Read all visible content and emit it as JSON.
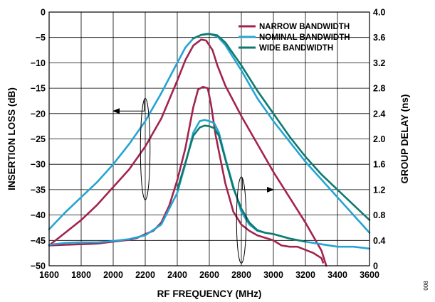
{
  "figure_code": "008",
  "chart_data": {
    "type": "line",
    "xlabel": "RF FREQUENCY (MHz)",
    "ylabel_left": "INSERTION LOSS (dB)",
    "ylabel_right": "GROUP DELAY (ns)",
    "xlim": [
      1600,
      3600
    ],
    "ylim_left": [
      -50,
      0
    ],
    "ylim_right": [
      0,
      4.0
    ],
    "x_ticks": [
      1600,
      1800,
      2000,
      2200,
      2400,
      2600,
      2800,
      3000,
      3200,
      3400,
      3600
    ],
    "y_left_ticks": [
      0,
      -5,
      -10,
      -15,
      -20,
      -25,
      -30,
      -35,
      -40,
      -45,
      -50
    ],
    "y_left_tick_labels": [
      "0",
      "−5",
      "−10",
      "−15",
      "−20",
      "−25",
      "−30",
      "−35",
      "−40",
      "−45",
      "−50"
    ],
    "y_right_ticks": [
      4.0,
      3.6,
      3.2,
      2.8,
      2.4,
      2.0,
      1.6,
      1.2,
      0.8,
      0.4,
      0
    ],
    "y_right_tick_labels": [
      "4.0",
      "3.6",
      "3.2",
      "2.8",
      "2.4",
      "2.0",
      "1.6",
      "1.2",
      "0.8",
      "0.4",
      "0"
    ],
    "grid": true,
    "legend_position": "top-right",
    "colors": {
      "narrow": "#a3234f",
      "nominal": "#25a4d4",
      "wide": "#0e7a6e"
    },
    "series": [
      {
        "name": "NARROW BANDWIDTH",
        "key": "narrow",
        "axis": "left",
        "x": [
          1600,
          1700,
          1800,
          1900,
          2000,
          2100,
          2200,
          2300,
          2400,
          2450,
          2500,
          2550,
          2580,
          2620,
          2650,
          2700,
          2800,
          2900,
          3000,
          3100,
          3200,
          3300,
          3330
        ],
        "y": [
          -46,
          -43.5,
          -41,
          -38,
          -34.5,
          -31,
          -26.5,
          -21,
          -13.5,
          -9.5,
          -6.6,
          -5.4,
          -5.6,
          -7.5,
          -10.5,
          -14.5,
          -20.5,
          -26,
          -31.5,
          -36.5,
          -41.5,
          -47,
          -50
        ]
      },
      {
        "name": "NOMINAL BANDWIDTH",
        "key": "nominal",
        "axis": "left",
        "x": [
          1600,
          1700,
          1800,
          1900,
          2000,
          2100,
          2200,
          2300,
          2400,
          2450,
          2500,
          2550,
          2580,
          2600,
          2650,
          2700,
          2800,
          2900,
          3000,
          3100,
          3200,
          3300,
          3400,
          3500,
          3600
        ],
        "y": [
          -42.8,
          -39.5,
          -36.5,
          -33.5,
          -30,
          -26,
          -21.5,
          -16,
          -10,
          -7,
          -5.2,
          -4.5,
          -4.3,
          -4.3,
          -4.8,
          -6.5,
          -11.5,
          -17,
          -21.5,
          -25.5,
          -29.5,
          -33,
          -36.5,
          -40,
          -43.5
        ]
      },
      {
        "name": "WIDE BANDWIDTH",
        "key": "wide",
        "axis": "left",
        "x": [
          2500,
          2550,
          2600,
          2650,
          2700,
          2800,
          2900,
          3000,
          3100,
          3200,
          3300,
          3400,
          3500,
          3600
        ],
        "y": [
          -5.2,
          -4.5,
          -4.3,
          -4.6,
          -6,
          -10.5,
          -15.5,
          -20,
          -24.5,
          -28.5,
          -32,
          -35,
          -38,
          -41
        ]
      },
      {
        "name": "NARROW BANDWIDTH",
        "key": "narrow",
        "axis": "right",
        "x": [
          1600,
          1700,
          1800,
          1900,
          2000,
          2100,
          2150,
          2200,
          2250,
          2300,
          2350,
          2400,
          2450,
          2500,
          2530,
          2560,
          2590,
          2610,
          2640,
          2700,
          2750,
          2800,
          2850,
          2900,
          3000,
          3050,
          3100,
          3150,
          3200,
          3250,
          3300,
          3310
        ],
        "y": [
          0.32,
          0.33,
          0.34,
          0.35,
          0.38,
          0.41,
          0.44,
          0.5,
          0.55,
          0.68,
          0.95,
          1.35,
          1.85,
          2.5,
          2.78,
          2.82,
          2.8,
          2.55,
          2.05,
          1.3,
          0.85,
          0.65,
          0.55,
          0.48,
          0.4,
          0.32,
          0.3,
          0.3,
          0.25,
          0.2,
          0.12,
          0.05
        ]
      },
      {
        "name": "NOMINAL BANDWIDTH",
        "key": "nominal",
        "axis": "right",
        "x": [
          1600,
          1700,
          1800,
          1900,
          2000,
          2100,
          2200,
          2300,
          2400,
          2450,
          2500,
          2540,
          2570,
          2600,
          2630,
          2660,
          2700,
          2750,
          2800,
          2850,
          2900,
          2950,
          3000,
          3100,
          3200,
          3300,
          3400,
          3500,
          3600
        ],
        "y": [
          0.33,
          0.36,
          0.37,
          0.37,
          0.39,
          0.42,
          0.48,
          0.65,
          1.15,
          1.6,
          2.1,
          2.28,
          2.3,
          2.28,
          2.25,
          2.1,
          1.7,
          1.25,
          0.85,
          0.65,
          0.55,
          0.52,
          0.5,
          0.43,
          0.38,
          0.34,
          0.3,
          0.3,
          0.27
        ]
      },
      {
        "name": "WIDE BANDWIDTH",
        "key": "wide",
        "axis": "right",
        "x": [
          2400,
          2450,
          2500,
          2540,
          2570,
          2600,
          2630,
          2660,
          2700,
          2750,
          2800,
          2850,
          2900,
          2950,
          3000,
          3100,
          3200
        ],
        "y": [
          1.2,
          1.62,
          2.05,
          2.18,
          2.21,
          2.2,
          2.17,
          2.05,
          1.68,
          1.22,
          0.9,
          0.68,
          0.56,
          0.52,
          0.5,
          0.43,
          0.38
        ]
      }
    ],
    "annotations": [
      {
        "type": "ellipse-arrow",
        "cx": 2200,
        "cy_left": -27,
        "rx": 30,
        "ry_left": 10,
        "to_x": 2000,
        "to_y_left": -19.5,
        "meaning": "left axis"
      },
      {
        "type": "ellipse-arrow",
        "cx": 2800,
        "cy_left": -41,
        "rx": 30,
        "ry_left": 8.5,
        "to_x": 3000,
        "to_y_left": -35,
        "meaning": "right axis"
      }
    ]
  }
}
